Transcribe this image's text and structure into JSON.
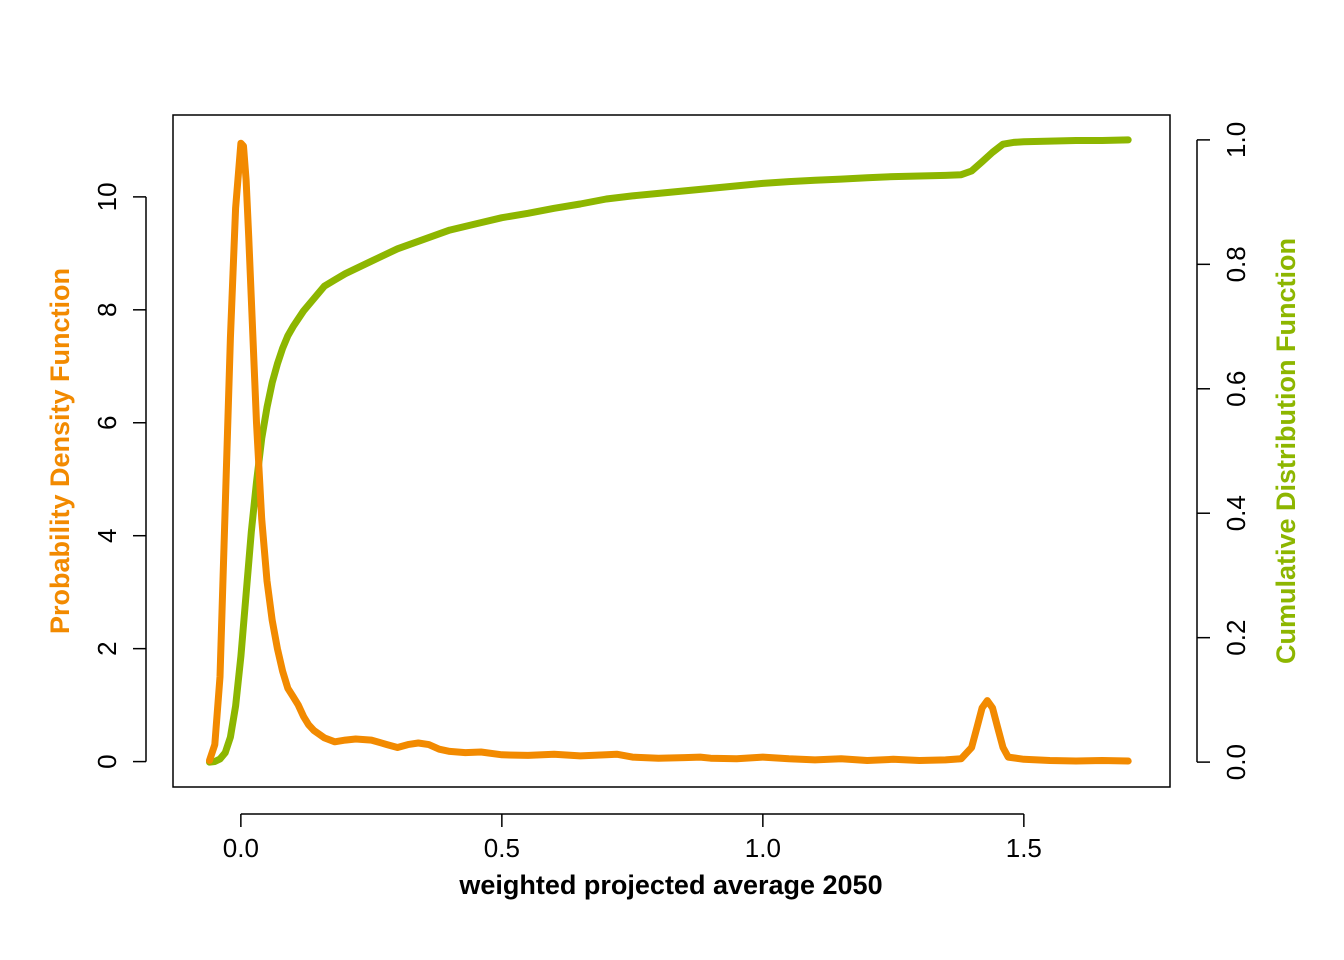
{
  "colors": {
    "pdf": "#F28A00",
    "cdf": "#8DB600",
    "axis": "#000000",
    "background": "#FFFFFF"
  },
  "chart_data": {
    "type": "line",
    "title": "",
    "xlabel": "weighted projected average 2050",
    "ylabel_left": "Probability Density Function",
    "ylabel_right": "Cumulative Distribution Function",
    "xlim": [
      -0.13,
      1.78
    ],
    "ylim_left": [
      -0.45,
      11.45
    ],
    "ylim_right": [
      -0.04,
      1.04
    ],
    "x_ticks": [
      0.0,
      0.5,
      1.0,
      1.5
    ],
    "x_tick_labels": [
      "0.0",
      "0.5",
      "1.0",
      "1.5"
    ],
    "y_left_ticks": [
      0,
      2,
      4,
      6,
      8,
      10
    ],
    "y_left_tick_labels": [
      "0",
      "2",
      "4",
      "6",
      "8",
      "10"
    ],
    "y_right_ticks": [
      0.0,
      0.2,
      0.4,
      0.6,
      0.8,
      1.0
    ],
    "y_right_tick_labels": [
      "0.0",
      "0.2",
      "0.4",
      "0.6",
      "0.8",
      "1.0"
    ],
    "grid": false,
    "legend": "none",
    "series": [
      {
        "name": "Probability Density Function",
        "axis": "left",
        "x": [
          -0.06,
          -0.05,
          -0.04,
          -0.03,
          -0.02,
          -0.01,
          0.0,
          0.005,
          0.01,
          0.015,
          0.02,
          0.03,
          0.04,
          0.05,
          0.06,
          0.07,
          0.08,
          0.09,
          0.1,
          0.11,
          0.12,
          0.13,
          0.14,
          0.16,
          0.18,
          0.2,
          0.22,
          0.25,
          0.28,
          0.3,
          0.32,
          0.34,
          0.36,
          0.38,
          0.4,
          0.43,
          0.46,
          0.5,
          0.55,
          0.6,
          0.65,
          0.7,
          0.72,
          0.75,
          0.8,
          0.85,
          0.88,
          0.9,
          0.95,
          1.0,
          1.05,
          1.1,
          1.15,
          1.2,
          1.25,
          1.3,
          1.35,
          1.38,
          1.4,
          1.41,
          1.42,
          1.43,
          1.44,
          1.45,
          1.46,
          1.47,
          1.5,
          1.55,
          1.6,
          1.65,
          1.7
        ],
        "y": [
          0.02,
          0.3,
          1.5,
          4.5,
          7.5,
          9.8,
          10.95,
          10.9,
          10.3,
          9.3,
          8.2,
          6.0,
          4.3,
          3.2,
          2.5,
          2.0,
          1.6,
          1.3,
          1.15,
          1.0,
          0.8,
          0.65,
          0.55,
          0.42,
          0.35,
          0.38,
          0.4,
          0.38,
          0.3,
          0.25,
          0.3,
          0.33,
          0.3,
          0.22,
          0.18,
          0.16,
          0.17,
          0.12,
          0.11,
          0.13,
          0.1,
          0.12,
          0.13,
          0.08,
          0.06,
          0.07,
          0.08,
          0.06,
          0.05,
          0.08,
          0.05,
          0.03,
          0.05,
          0.02,
          0.04,
          0.02,
          0.03,
          0.05,
          0.25,
          0.6,
          0.95,
          1.08,
          0.95,
          0.6,
          0.25,
          0.08,
          0.04,
          0.02,
          0.01,
          0.02,
          0.01
        ]
      },
      {
        "name": "Cumulative Distribution Function",
        "axis": "right",
        "x": [
          -0.06,
          -0.05,
          -0.04,
          -0.03,
          -0.02,
          -0.01,
          0.0,
          0.01,
          0.02,
          0.03,
          0.04,
          0.05,
          0.06,
          0.07,
          0.08,
          0.09,
          0.1,
          0.12,
          0.14,
          0.16,
          0.18,
          0.2,
          0.25,
          0.3,
          0.35,
          0.4,
          0.45,
          0.5,
          0.55,
          0.6,
          0.65,
          0.7,
          0.75,
          0.8,
          0.85,
          0.9,
          0.95,
          1.0,
          1.05,
          1.1,
          1.15,
          1.2,
          1.25,
          1.3,
          1.35,
          1.38,
          1.4,
          1.42,
          1.44,
          1.46,
          1.48,
          1.5,
          1.55,
          1.6,
          1.65,
          1.7
        ],
        "y": [
          0.0,
          0.001,
          0.005,
          0.015,
          0.04,
          0.09,
          0.17,
          0.27,
          0.37,
          0.45,
          0.52,
          0.57,
          0.61,
          0.64,
          0.665,
          0.685,
          0.7,
          0.725,
          0.745,
          0.765,
          0.775,
          0.785,
          0.805,
          0.825,
          0.84,
          0.855,
          0.865,
          0.875,
          0.882,
          0.89,
          0.897,
          0.905,
          0.91,
          0.914,
          0.918,
          0.922,
          0.926,
          0.93,
          0.933,
          0.935,
          0.937,
          0.939,
          0.941,
          0.942,
          0.943,
          0.944,
          0.95,
          0.965,
          0.98,
          0.993,
          0.996,
          0.997,
          0.998,
          0.999,
          0.999,
          1.0
        ]
      }
    ]
  }
}
